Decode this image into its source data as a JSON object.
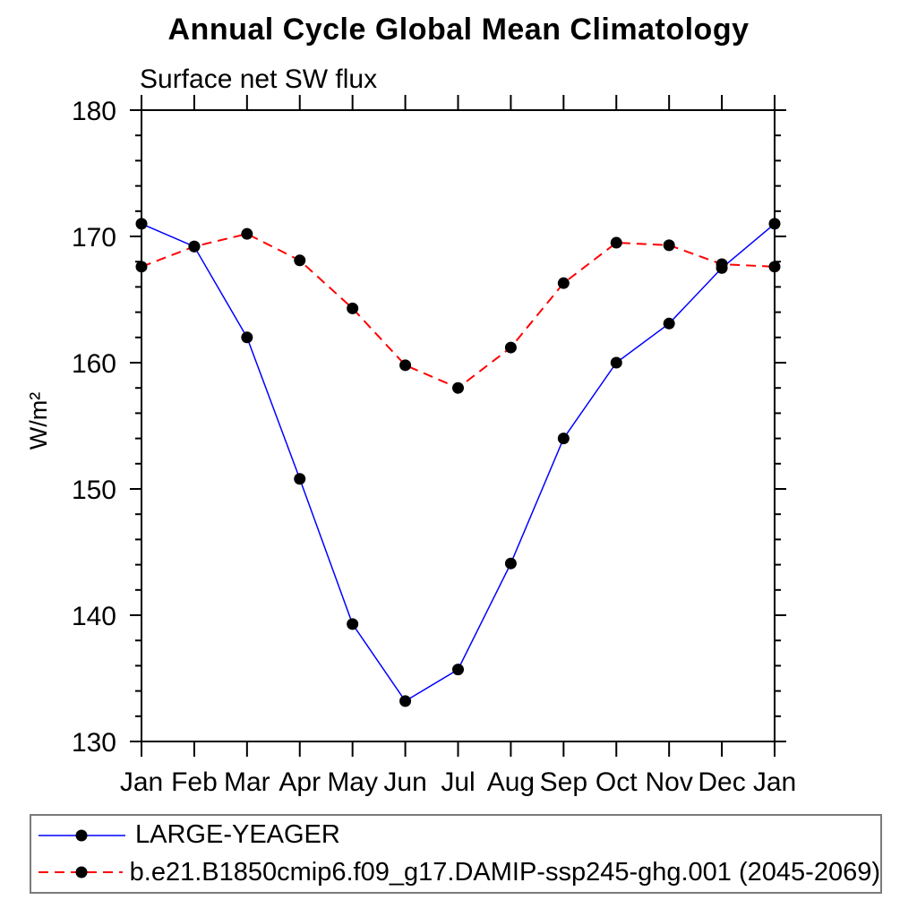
{
  "title": "Annual Cycle Global Mean Climatology",
  "subtitle": "Surface net SW flux",
  "ylabel": "W/m²",
  "chart_data": {
    "type": "line",
    "title": "Annual Cycle Global Mean Climatology",
    "subtitle": "Surface net SW flux",
    "xlabel": "",
    "ylabel": "W/m²",
    "categories": [
      "Jan",
      "Feb",
      "Mar",
      "Apr",
      "May",
      "Jun",
      "Jul",
      "Aug",
      "Sep",
      "Oct",
      "Nov",
      "Dec",
      "Jan"
    ],
    "series": [
      {
        "name": "LARGE-YEAGER",
        "color": "#0000ff",
        "line_style": "solid",
        "marker": "filled-circle",
        "marker_color": "#000000",
        "values": [
          171.0,
          169.2,
          162.0,
          150.8,
          139.3,
          133.2,
          135.7,
          144.1,
          154.0,
          160.0,
          163.1,
          167.5,
          171.0
        ]
      },
      {
        "name": "b.e21.B1850cmip6.f09_g17.DAMIP-ssp245-ghg.001 (2045-2069)",
        "color": "#ff0000",
        "line_style": "dashed",
        "marker": "filled-circle",
        "marker_color": "#000000",
        "values": [
          167.6,
          169.2,
          170.2,
          168.1,
          164.3,
          159.8,
          158.0,
          161.2,
          166.3,
          169.5,
          169.3,
          167.8,
          167.6
        ]
      }
    ],
    "ylim": [
      130,
      180
    ],
    "y_major_step": 10,
    "y_minor_step": 2,
    "y_major_ticks": [
      130,
      140,
      150,
      160,
      170,
      180
    ],
    "grid": false,
    "frame": "box-with-outward-ticks",
    "legend_position": "bottom-box"
  }
}
